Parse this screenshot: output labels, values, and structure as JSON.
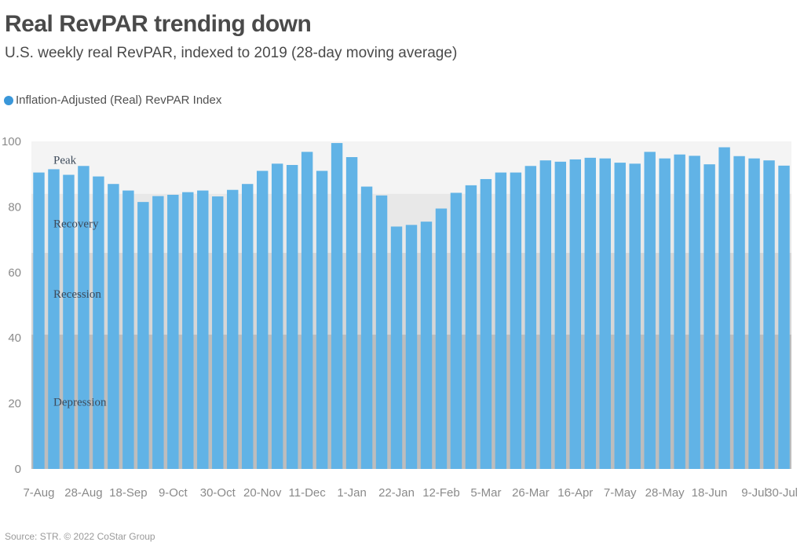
{
  "title": "Real RevPAR trending down",
  "subtitle": "U.S. weekly real RevPAR, indexed to 2019 (28-day moving average)",
  "source": "Source: STR. © 2022 CoStar Group",
  "colors": {
    "bar": "#61b3e6",
    "legend": "#3a97d9",
    "band_light": "#f4f4f4",
    "band_mid": "#e8e8e8",
    "band_dark": "#bdbdbd"
  },
  "chart_data": {
    "type": "bar",
    "title": "Real RevPAR trending down",
    "subtitle": "U.S. weekly real RevPAR, indexed to 2019 (28-day moving average)",
    "legend": [
      "Inflation-Adjusted (Real) RevPAR Index"
    ],
    "legend_position": "top-left",
    "ylim": [
      0,
      100
    ],
    "y_ticks": [
      0,
      20,
      40,
      60,
      80,
      100
    ],
    "x_tick_labels": [
      "7-Aug",
      "28-Aug",
      "18-Sep",
      "9-Oct",
      "30-Oct",
      "20-Nov",
      "11-Dec",
      "1-Jan",
      "22-Jan",
      "12-Feb",
      "5-Mar",
      "26-Mar",
      "16-Apr",
      "7-May",
      "28-May",
      "18-Jun",
      "9-Jul",
      "30-Jul"
    ],
    "bands": [
      {
        "label": "Peak",
        "from": 84,
        "to": 100
      },
      {
        "label": "Recovery",
        "from": 66,
        "to": 84
      },
      {
        "label": "Recession",
        "from": 41,
        "to": 66
      },
      {
        "label": "Depression",
        "from": 0,
        "to": 41
      }
    ],
    "series": [
      {
        "name": "Inflation-Adjusted (Real) RevPAR Index",
        "values": [
          90.5,
          91.5,
          89.8,
          92.5,
          89.3,
          87.0,
          85.0,
          81.5,
          83.3,
          83.7,
          84.5,
          85.0,
          83.2,
          85.2,
          87.0,
          91.0,
          93.2,
          92.8,
          96.8,
          91.0,
          99.5,
          95.2,
          86.2,
          83.5,
          74.0,
          74.5,
          75.5,
          79.5,
          84.3,
          86.6,
          88.5,
          90.5,
          90.5,
          92.5,
          94.2,
          93.8,
          94.5,
          95.0,
          94.8,
          93.5,
          93.2,
          96.8,
          94.8,
          96.0,
          95.6,
          93.0,
          98.2,
          95.5,
          94.8,
          94.2,
          92.6
        ]
      }
    ]
  }
}
